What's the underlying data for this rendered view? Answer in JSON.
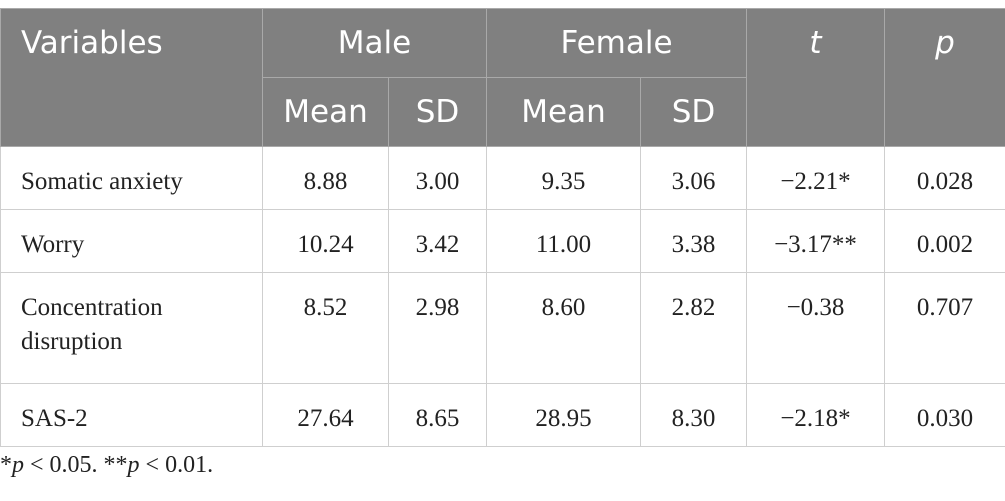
{
  "table": {
    "header": {
      "variables": "Variables",
      "groups": [
        "Male",
        "Female"
      ],
      "t": "t",
      "p": "p",
      "subheaders": [
        "Mean",
        "SD",
        "Mean",
        "SD"
      ]
    },
    "rows": [
      [
        "Somatic anxiety",
        "8.88",
        "3.00",
        "9.35",
        "3.06",
        "−2.21*",
        "0.028"
      ],
      [
        "Worry",
        "10.24",
        "3.42",
        "11.00",
        "3.38",
        "−3.17**",
        "0.002"
      ],
      [
        "Concentration disruption",
        "8.52",
        "2.98",
        "8.60",
        "2.82",
        "−0.38",
        "0.707"
      ],
      [
        "SAS-2",
        "27.64",
        "8.65",
        "28.95",
        "8.30",
        "−2.18*",
        "0.030"
      ]
    ]
  },
  "footnote": [
    "*",
    "p",
    " < 0.05. **",
    "p",
    " < 0.01."
  ]
}
